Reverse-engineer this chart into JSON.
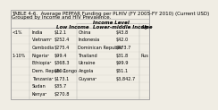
{
  "title_line1": "TABLE 4-6.  Average PEPFAR Funding per PLHIV (FY 2005-FY 2010) (Current USD)",
  "title_line2": "Grouped by Income and HIV Prevalence.",
  "income_level_header": "Income Level",
  "subheader_low": "Low Income",
  "subheader_lm": "Lower-middle Income",
  "subheader_up": "Up",
  "rows": [
    {
      "prev": "<1%",
      "lc": "India",
      "lv": "$12.1",
      "mc": "China",
      "mv": "$43.8",
      "up": ""
    },
    {
      "prev": "",
      "lc": "Vietnam²",
      "lv": "$252.4",
      "mc": "Indonesia",
      "mv": "$42.0",
      "up": ""
    },
    {
      "prev": "",
      "lc": "Cambodia",
      "lv": "$275.4",
      "mc": "Dominican Republic",
      "mv": "$473.7",
      "up": ""
    },
    {
      "prev": "1-10%",
      "lc": "Nigeria²",
      "lv": "$99.4",
      "mc": "Thailand",
      "mv": "$31.8",
      "up": "Rus"
    },
    {
      "prev": "",
      "lc": "Ethiopia²",
      "lv": "$368.3",
      "mc": "Ukraine",
      "mv": "$99.9",
      "up": ""
    },
    {
      "prev": "",
      "lc": "Dem. Repub. Congo",
      "lv": "$36.1",
      "mc": "Angola",
      "mv": "$51.1",
      "up": ""
    },
    {
      "prev": "",
      "lc": "Tanzania²",
      "lv": "$173.1",
      "mc": "Guyana²",
      "mv": "$3,842.7",
      "up": ""
    },
    {
      "prev": "",
      "lc": "Sudan",
      "lv": "$35.7",
      "mc": "",
      "mv": "",
      "up": ""
    },
    {
      "prev": "",
      "lc": "Kenya²",
      "lv": "$270.8",
      "mc": "",
      "mv": "",
      "up": ""
    }
  ],
  "bg_color": "#f0ede4",
  "border_color": "#999999",
  "line_color": "#aaaaaa",
  "title_fontsize": 4.0,
  "cell_fontsize": 3.6,
  "header_fontsize": 4.0
}
